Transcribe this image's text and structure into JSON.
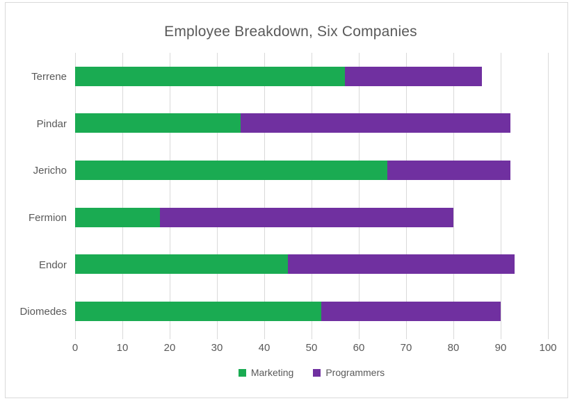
{
  "chart_data": {
    "type": "bar",
    "orientation": "horizontal",
    "stacked": true,
    "title": "Employee Breakdown, Six Companies",
    "categories": [
      "Terrene",
      "Pindar",
      "Jericho",
      "Fermion",
      "Endor",
      "Diomedes"
    ],
    "series": [
      {
        "name": "Marketing",
        "color": "#1AAB52",
        "values": [
          57,
          35,
          66,
          18,
          45,
          52
        ]
      },
      {
        "name": "Programmers",
        "color": "#7030A0",
        "values": [
          29,
          57,
          26,
          62,
          48,
          38
        ]
      }
    ],
    "totals": [
      86,
      92,
      92,
      80,
      93,
      90
    ],
    "xlim": [
      0,
      100
    ],
    "x_ticks": [
      0,
      10,
      20,
      30,
      40,
      50,
      60,
      70,
      80,
      90,
      100
    ],
    "grid": "vertical",
    "legend_position": "bottom",
    "colors": {
      "title_text": "#595959",
      "axis_text": "#595959",
      "gridline": "#D9D9D9",
      "frame_border": "#D9D9D9",
      "background": "#FFFFFF"
    }
  }
}
